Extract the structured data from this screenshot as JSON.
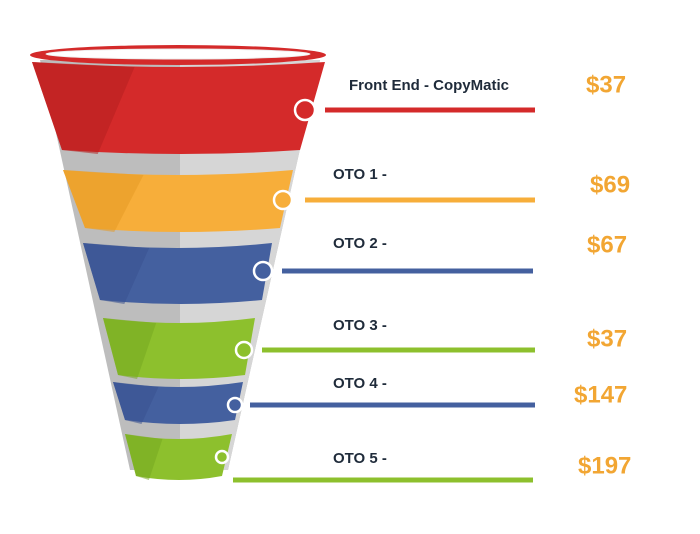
{
  "stages": [
    {
      "label": "Front End - CopyMatic",
      "price": "$37"
    },
    {
      "label": "OTO 1 -",
      "price": "$69"
    },
    {
      "label": "OTO 2 -",
      "price": "$67"
    },
    {
      "label": "OTO 3 -",
      "price": "$37"
    },
    {
      "label": "OTO 4 -",
      "price": "$147"
    },
    {
      "label": "OTO 5 -",
      "price": "$197"
    }
  ]
}
